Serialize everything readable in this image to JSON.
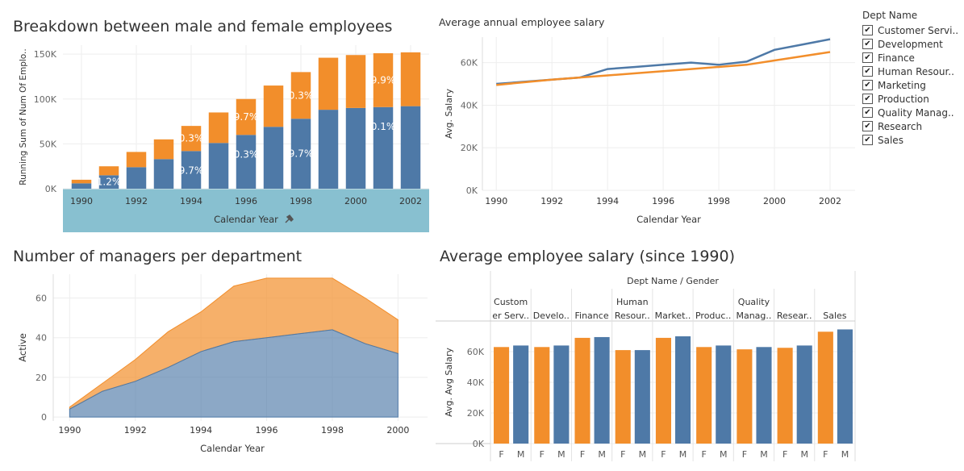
{
  "colors": {
    "male": "#4e79a7",
    "female": "#f28e2b",
    "grid": "#eeeeee",
    "highlight_band": "#88c0d0"
  },
  "icons": {
    "pin": "pin-icon",
    "check": "check-icon"
  },
  "top_left": {
    "title": "Breakdown between male and female employees",
    "ylabel": "Running Sum of Num Of Emplo..",
    "xlabel": "Calendar Year",
    "bar_labels": [
      "1.2%",
      "9.7%",
      "0.3%",
      "0.3%",
      "9.7%",
      "9.7%",
      "0.3%",
      "0.1%",
      "9.9%"
    ]
  },
  "top_right": {
    "title": "Average annual employee salary",
    "ylabel": "Avg. Salary",
    "xlabel": "Calendar Year"
  },
  "bottom_left": {
    "title": "Number of managers per department",
    "ylabel": "Active",
    "xlabel": "Calendar Year"
  },
  "bottom_right": {
    "title": "Average employee salary (since 1990)",
    "header": "Dept Name  /  Gender",
    "ylabel": "Avg. Avg Salary"
  },
  "legend": {
    "title": "Dept Name",
    "items": [
      "Customer Servi..",
      "Development",
      "Finance",
      "Human Resour..",
      "Marketing",
      "Production",
      "Quality Manag..",
      "Research",
      "Sales"
    ]
  },
  "chart_data": [
    {
      "type": "bar",
      "stacked": true,
      "title": "Breakdown between male and female employees",
      "xlabel": "Calendar Year",
      "ylabel": "Running Sum of Num Of Emplo..",
      "categories": [
        "1990",
        "1991",
        "1992",
        "1993",
        "1994",
        "1995",
        "1996",
        "1997",
        "1998",
        "1999",
        "2000",
        "2001",
        "2002"
      ],
      "x_ticks": [
        "1990",
        "1992",
        "1994",
        "1996",
        "1998",
        "2000",
        "2002"
      ],
      "y_ticks": [
        "0K",
        "50K",
        "100K",
        "150K"
      ],
      "ylim": [
        0,
        160000
      ],
      "series": [
        {
          "values": [
            6000,
            15000,
            24000,
            33000,
            42000,
            51000,
            60000,
            69000,
            78000,
            88000,
            90000,
            91000,
            92000
          ]
        },
        {
          "values": [
            4000,
            10000,
            17000,
            22000,
            28000,
            34000,
            40000,
            46000,
            52000,
            58000,
            59000,
            60000,
            60000
          ]
        }
      ]
    },
    {
      "type": "line",
      "title": "Average annual employee salary",
      "xlabel": "Calendar Year",
      "ylabel": "Avg. Salary",
      "x": [
        1990,
        1991,
        1992,
        1993,
        1994,
        1995,
        1996,
        1997,
        1998,
        1999,
        2000,
        2001,
        2002
      ],
      "x_ticks": [
        "1990",
        "1992",
        "1994",
        "1996",
        "1998",
        "2000",
        "2002"
      ],
      "y_ticks": [
        "0K",
        "20K",
        "40K",
        "60K"
      ],
      "ylim": [
        0,
        72000
      ],
      "series": [
        {
          "values": [
            50000,
            51000,
            52000,
            53000,
            57000,
            58000,
            59000,
            60000,
            59000,
            60500,
            66000,
            68500,
            71000
          ]
        },
        {
          "values": [
            49500,
            50800,
            52000,
            53000,
            54000,
            55000,
            56000,
            57000,
            58000,
            59000,
            61000,
            63000,
            65000
          ]
        }
      ]
    },
    {
      "type": "area",
      "stacked": true,
      "title": "Number of managers per department",
      "xlabel": "Calendar Year",
      "ylabel": "Active",
      "x": [
        1990,
        1991,
        1992,
        1993,
        1994,
        1995,
        1996,
        1997,
        1998,
        1999,
        2000
      ],
      "x_ticks": [
        "1990",
        "1992",
        "1994",
        "1996",
        "1998",
        "2000"
      ],
      "y_ticks": [
        "0",
        "20",
        "40",
        "60"
      ],
      "ylim": [
        -2,
        72
      ],
      "series": [
        {
          "values": [
            4,
            13,
            18,
            25,
            33,
            38,
            40,
            42,
            44,
            37,
            32
          ]
        },
        {
          "values": [
            1,
            4,
            11,
            18,
            20,
            28,
            30,
            28,
            26,
            23,
            17
          ]
        }
      ]
    },
    {
      "type": "bar",
      "title": "Average employee salary (since 1990)",
      "ylabel": "Avg. Avg Salary",
      "groups": [
        "Custom\ner Serv..",
        "Develo..",
        "Finance",
        "Human\nResour..",
        "Market..",
        "Produc..",
        "Quality\nManag..",
        "Resear..",
        "Sales"
      ],
      "genders": [
        "F",
        "M"
      ],
      "y_ticks": [
        "0K",
        "20K",
        "40K",
        "60K"
      ],
      "ylim": [
        0,
        80000
      ],
      "series": [
        {
          "values": [
            63000,
            63000,
            69000,
            61000,
            69000,
            63000,
            61500,
            62500,
            73000
          ]
        },
        {
          "values": [
            64000,
            64000,
            69500,
            61000,
            70000,
            64000,
            63000,
            64000,
            74500
          ]
        }
      ]
    }
  ]
}
